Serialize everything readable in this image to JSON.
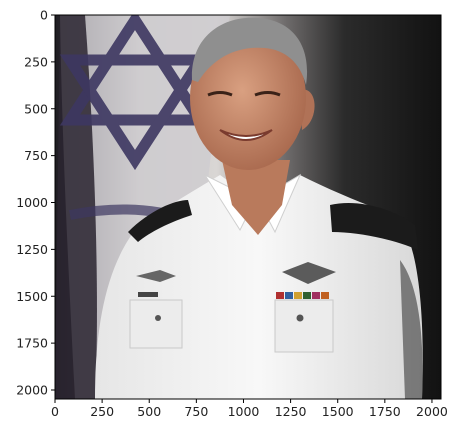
{
  "image": {
    "description_icon": "portrait-photo",
    "colors": {
      "background_left": "#d8d5d2",
      "background_right": "#151515",
      "flag_blue": "#3d3761",
      "uniform": "#f3f3f3",
      "skin": "#c98d6e",
      "hair": "#8f8f8f"
    }
  },
  "axes": {
    "x_ticks": [
      "0",
      "250",
      "500",
      "750",
      "1000",
      "1250",
      "1500",
      "1750",
      "2000"
    ],
    "y_ticks": [
      "0",
      "250",
      "500",
      "750",
      "1000",
      "1250",
      "1500",
      "1750",
      "2000"
    ],
    "x_tick_values": [
      0,
      250,
      500,
      750,
      1000,
      1250,
      1500,
      1750,
      2000
    ],
    "y_tick_values": [
      0,
      250,
      500,
      750,
      1000,
      1250,
      1500,
      1750,
      2000
    ],
    "xlim": [
      0,
      2048
    ],
    "ylim": [
      2048,
      0
    ]
  }
}
